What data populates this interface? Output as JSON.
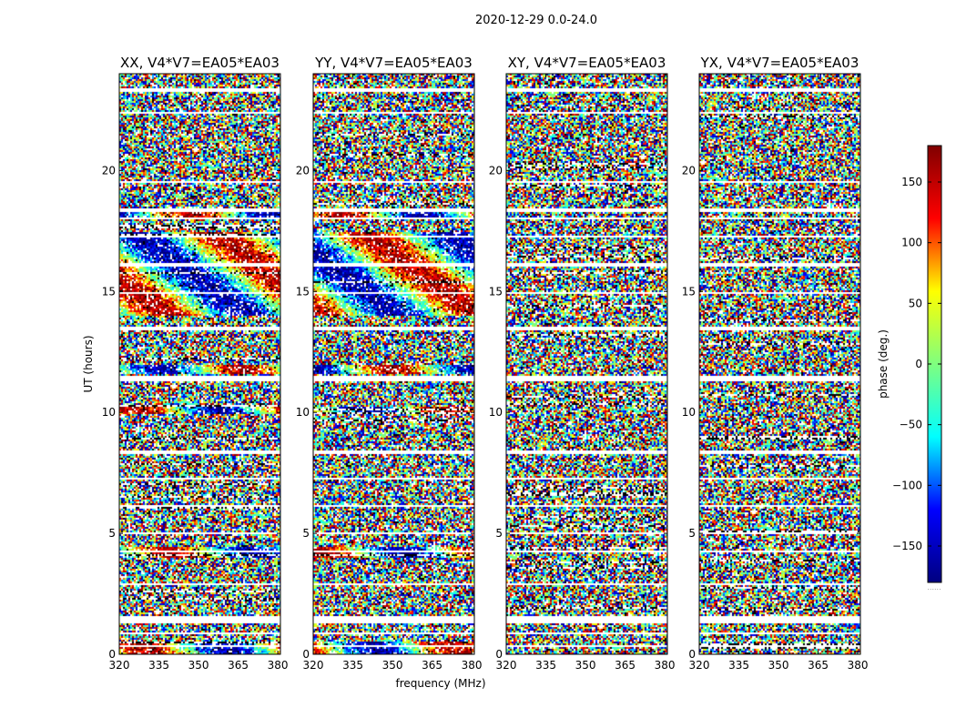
{
  "chart_data": {
    "type": "heatmap",
    "title": "2020-12-29 0.0-24.0",
    "xlabel": "frequency (MHz)",
    "ylabel": "UT (hours)",
    "xlim": [
      320,
      381
    ],
    "ylim": [
      0,
      24
    ],
    "x_ticks": [
      "320",
      "335",
      "350",
      "365",
      "380"
    ],
    "x_tick_values": [
      320,
      335,
      350,
      365,
      380
    ],
    "y_ticks": [
      "0",
      "5",
      "10",
      "15",
      "20"
    ],
    "y_tick_values": [
      0,
      5,
      10,
      15,
      20
    ],
    "panels": [
      {
        "title": "XX, V4*V7=EA05*EA03",
        "coherent": true
      },
      {
        "title": "YY, V4*V7=EA05*EA03",
        "coherent": true
      },
      {
        "title": "XY, V4*V7=EA05*EA03",
        "coherent": false
      },
      {
        "title": "YX, V4*V7=EA05*EA03",
        "coherent": false
      }
    ],
    "blank_time_bands": [
      [
        0.35,
        0.45
      ],
      [
        0.85,
        0.95
      ],
      [
        1.3,
        1.6
      ],
      [
        2.9,
        3.0
      ],
      [
        3.55,
        3.6
      ],
      [
        4.25,
        4.35
      ],
      [
        5.0,
        5.05
      ],
      [
        6.1,
        6.2
      ],
      [
        7.25,
        7.3
      ],
      [
        8.35,
        8.45
      ],
      [
        11.35,
        11.55
      ],
      [
        12.65,
        12.7
      ],
      [
        13.45,
        13.55
      ],
      [
        14.95,
        15.0
      ],
      [
        16.1,
        16.2
      ],
      [
        17.3,
        17.35
      ],
      [
        18.0,
        18.1
      ],
      [
        18.35,
        18.45
      ],
      [
        19.55,
        19.6
      ],
      [
        21.0,
        21.05
      ],
      [
        22.35,
        22.45
      ],
      [
        23.3,
        23.4
      ]
    ],
    "coherent_time_bands": [
      [
        0.0,
        0.6
      ],
      [
        4.0,
        4.5
      ],
      [
        10.0,
        10.25
      ],
      [
        11.6,
        12.0
      ],
      [
        14.0,
        17.5
      ],
      [
        18.1,
        18.35
      ]
    ],
    "colorbar": {
      "label": "phase (deg.)",
      "range": [
        -180,
        180
      ],
      "ticks": [
        "150",
        "100",
        "50",
        "0",
        "−50",
        "−100",
        "−150"
      ],
      "tick_values": [
        150,
        100,
        50,
        0,
        -50,
        -100,
        -150
      ],
      "colormap": [
        "#000080",
        "#0000ff",
        "#00ffff",
        "#7fff7f",
        "#ffff00",
        "#ff0000",
        "#800000"
      ],
      "footer": "......"
    }
  }
}
